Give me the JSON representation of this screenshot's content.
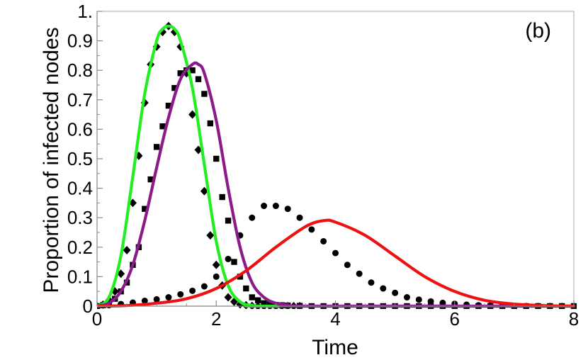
{
  "chart_data": {
    "type": "line",
    "title": "",
    "panel_label": "(b)",
    "xlabel": "Time",
    "ylabel": "Proportion of infected nodes",
    "xlim": [
      0,
      8
    ],
    "ylim": [
      0,
      1.0
    ],
    "x_ticks": [
      0,
      2,
      4,
      6,
      8
    ],
    "x_tick_labels": [
      "0",
      "2",
      "4",
      "6",
      "8"
    ],
    "y_ticks": [
      0,
      0.1,
      0.2,
      0.3,
      0.4,
      0.5,
      0.6,
      0.7,
      0.8,
      0.9,
      1.0
    ],
    "y_tick_labels": [
      "0",
      "0.1",
      "0.2",
      "0.3",
      "0.4",
      "0.5",
      "0.6",
      "0.7",
      "0.8",
      "0.9",
      "1."
    ],
    "grid": false,
    "series": [
      {
        "kind": "line",
        "color": "#22ee22",
        "x": [
          0,
          0.2,
          0.4,
          0.6,
          0.8,
          1.0,
          1.1,
          1.2,
          1.3,
          1.4,
          1.6,
          1.8,
          2.0,
          2.2,
          2.4,
          2.6,
          3.0,
          8.0
        ],
        "y": [
          0.0,
          0.03,
          0.17,
          0.44,
          0.72,
          0.9,
          0.94,
          0.95,
          0.94,
          0.9,
          0.74,
          0.48,
          0.22,
          0.07,
          0.015,
          0.003,
          0.0,
          0.0
        ]
      },
      {
        "kind": "line",
        "color": "#8b1a8b",
        "x": [
          0,
          0.2,
          0.4,
          0.6,
          0.8,
          1.0,
          1.2,
          1.4,
          1.6,
          1.7,
          1.8,
          2.0,
          2.2,
          2.4,
          2.6,
          2.8,
          3.0,
          3.2,
          3.5,
          8.0
        ],
        "y": [
          0.0,
          0.01,
          0.05,
          0.14,
          0.29,
          0.47,
          0.64,
          0.77,
          0.82,
          0.82,
          0.79,
          0.63,
          0.4,
          0.2,
          0.08,
          0.03,
          0.01,
          0.004,
          0.0,
          0.0
        ]
      },
      {
        "kind": "line",
        "color": "#ee1111",
        "x": [
          0,
          0.5,
          1.0,
          1.5,
          2.0,
          2.5,
          3.0,
          3.5,
          3.8,
          4.0,
          4.5,
          5.0,
          5.5,
          6.0,
          6.5,
          7.0,
          7.5,
          8.0
        ],
        "y": [
          0.0,
          0.002,
          0.01,
          0.025,
          0.06,
          0.12,
          0.2,
          0.27,
          0.29,
          0.285,
          0.24,
          0.17,
          0.1,
          0.05,
          0.02,
          0.007,
          0.002,
          0.0
        ]
      },
      {
        "kind": "markers",
        "marker": "diamond",
        "color": "#000000",
        "x": [
          0.0,
          0.1,
          0.2,
          0.3,
          0.4,
          0.5,
          0.6,
          0.7,
          0.8,
          0.9,
          1.0,
          1.1,
          1.2,
          1.3,
          1.4,
          1.5,
          1.6,
          1.7,
          1.8,
          1.9,
          2.0,
          2.1,
          2.2,
          2.3,
          2.4,
          2.5,
          2.6,
          2.7,
          2.8,
          2.9,
          3.0,
          3.1,
          3.2,
          3.3,
          3.4
        ],
        "y": [
          0.0,
          0.005,
          0.02,
          0.05,
          0.11,
          0.19,
          0.35,
          0.51,
          0.69,
          0.82,
          0.88,
          0.93,
          0.95,
          0.93,
          0.88,
          0.79,
          0.65,
          0.53,
          0.39,
          0.24,
          0.14,
          0.07,
          0.03,
          0.015,
          0.006,
          0.003,
          0.001,
          0.0,
          0.0,
          0.0,
          0.0,
          0.0,
          0.0,
          0.0,
          0.0
        ]
      },
      {
        "kind": "markers",
        "marker": "square",
        "color": "#000000",
        "x": [
          0.0,
          0.1,
          0.2,
          0.3,
          0.4,
          0.5,
          0.6,
          0.7,
          0.8,
          0.9,
          1.0,
          1.1,
          1.2,
          1.3,
          1.4,
          1.5,
          1.6,
          1.7,
          1.8,
          1.9,
          2.0,
          2.1,
          2.2,
          2.3,
          2.4,
          2.5,
          2.6,
          2.7,
          2.8,
          2.9,
          3.0,
          3.1,
          3.2,
          3.4,
          3.6,
          3.8,
          4.0,
          4.2,
          4.4,
          4.6,
          4.8,
          5.0,
          5.2,
          5.4,
          5.6,
          5.8,
          6.0,
          6.2,
          6.4,
          6.6,
          6.8,
          7.0,
          7.2,
          7.4,
          7.6,
          7.8,
          8.0
        ],
        "y": [
          0.0,
          0.003,
          0.01,
          0.025,
          0.05,
          0.08,
          0.14,
          0.2,
          0.33,
          0.43,
          0.54,
          0.61,
          0.68,
          0.74,
          0.79,
          0.8,
          0.8,
          0.77,
          0.72,
          0.62,
          0.5,
          0.37,
          0.29,
          0.15,
          0.1,
          0.06,
          0.03,
          0.02,
          0.01,
          0.006,
          0.004,
          0.003,
          0.002,
          0.001,
          0.0,
          0.0,
          0.0,
          0.0,
          0.0,
          0.0,
          0.0,
          0.0,
          0.0,
          0.0,
          0.0,
          0.0,
          0.0,
          0.0,
          0.0,
          0.0,
          0.0,
          0.0,
          0.0,
          0.0,
          0.0,
          0.0,
          0.0
        ]
      },
      {
        "kind": "markers",
        "marker": "circle",
        "color": "#000000",
        "x": [
          0.0,
          0.2,
          0.4,
          0.6,
          0.8,
          1.0,
          1.2,
          1.4,
          1.6,
          1.8,
          2.0,
          2.2,
          2.4,
          2.6,
          2.8,
          3.0,
          3.2,
          3.4,
          3.6,
          3.8,
          4.0,
          4.2,
          4.4,
          4.6,
          4.8,
          5.0,
          5.2,
          5.4,
          5.6,
          5.8,
          6.0,
          6.2,
          6.4,
          6.6,
          6.8,
          7.0,
          7.2,
          7.4,
          7.6,
          7.8,
          8.0
        ],
        "y": [
          0.0,
          0.003,
          0.007,
          0.012,
          0.018,
          0.023,
          0.03,
          0.04,
          0.052,
          0.067,
          0.1,
          0.16,
          0.24,
          0.3,
          0.34,
          0.34,
          0.33,
          0.3,
          0.26,
          0.22,
          0.18,
          0.14,
          0.11,
          0.08,
          0.06,
          0.045,
          0.03,
          0.022,
          0.016,
          0.011,
          0.008,
          0.005,
          0.003,
          0.002,
          0.001,
          0.0,
          0.0,
          0.0,
          0.0,
          0.0,
          0.0
        ]
      }
    ]
  }
}
